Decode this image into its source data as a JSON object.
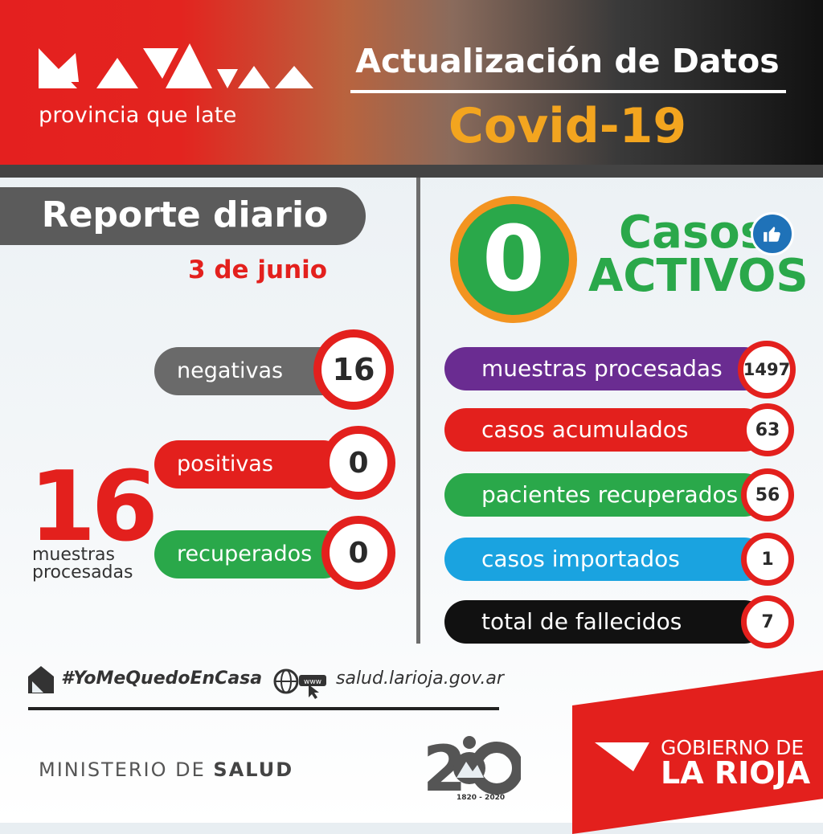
{
  "header": {
    "logo_wordmark": "La Rioja",
    "logo_tagline": "provincia que late",
    "title": "Actualización de Datos",
    "subtitle": "Covid-19"
  },
  "left": {
    "report_title": "Reporte diario",
    "date": "3 de junio",
    "rows": [
      {
        "label": "negativas",
        "value": "16",
        "color": "#6a6a6a"
      },
      {
        "label": "positivas",
        "value": "0",
        "color": "#e3201d"
      },
      {
        "label": "recuperados",
        "value": "0",
        "color": "#2aa84a"
      }
    ],
    "total_value": "16",
    "total_label_1": "muestras",
    "total_label_2": "procesadas"
  },
  "right": {
    "active_value": "0",
    "active_label_1": "Casos",
    "active_label_2": "ACTIVOS",
    "rows": [
      {
        "label": "muestras procesadas",
        "value": "1497",
        "color": "#6a2c91"
      },
      {
        "label": "casos acumulados",
        "value": "63",
        "color": "#e3201d"
      },
      {
        "label": "pacientes recuperados",
        "value": "56",
        "color": "#2aa84a"
      },
      {
        "label": "casos importados",
        "value": "1",
        "color": "#1aa3e0"
      },
      {
        "label": "total de fallecidos",
        "value": "7",
        "color": "#111111"
      }
    ]
  },
  "footer": {
    "hashtag": "#YoMeQuedoEnCasa",
    "website": "salud.larioja.gov.ar",
    "www": "www",
    "ministry_1": "MINISTERIO DE ",
    "ministry_2": "SALUD",
    "bicentenary": "1820 - 2020",
    "gov_1": "GOBIERNO DE",
    "gov_2": "LA RIOJA"
  },
  "colors": {
    "brand_red": "#e3201d",
    "green": "#2aa84a",
    "orange": "#f39420",
    "gold": "#f3a51f"
  }
}
